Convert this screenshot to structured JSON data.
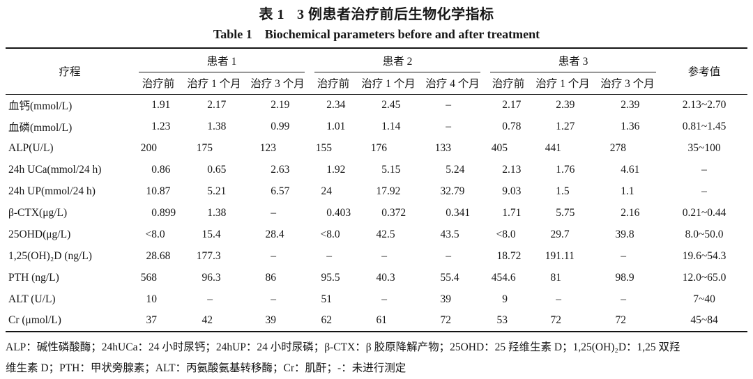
{
  "title": {
    "cn_label": "表 1",
    "cn_text": "3 例患者治疗前后生物化学指标",
    "en_label": "Table 1",
    "en_text": "Biochemical parameters before and after treatment"
  },
  "table": {
    "course_header": "疗程",
    "reference_header": "参考值",
    "patients": [
      {
        "label": "患者 1",
        "cols": [
          "治疗前",
          "治疗 1 个月",
          "治疗 3 个月"
        ]
      },
      {
        "label": "患者 2",
        "cols": [
          "治疗前",
          "治疗 1 个月",
          "治疗 4 个月"
        ]
      },
      {
        "label": "患者 3",
        "cols": [
          "治疗前",
          "治疗 1 个月",
          "治疗 3 个月"
        ]
      }
    ],
    "rows": [
      {
        "label": "血钙(mmol/L)",
        "values": [
          "1.91",
          "2.17",
          "2.19",
          "2.34",
          "2.45",
          "–",
          "2.17",
          "2.39",
          "2.39"
        ],
        "ref": "2.13~2.70"
      },
      {
        "label": "血磷(mmol/L)",
        "values": [
          "1.23",
          "1.38",
          "0.99",
          "1.01",
          "1.14",
          "–",
          "0.78",
          "1.27",
          "1.36"
        ],
        "ref": "0.81~1.45"
      },
      {
        "label": "ALP(U/L)",
        "values": [
          "200",
          "175",
          "123",
          "155",
          "176",
          "133",
          "405",
          "441",
          "278"
        ],
        "ref": "35~100"
      },
      {
        "label": "24h UCa(mmol/24 h)",
        "values": [
          "0.86",
          "0.65",
          "2.63",
          "1.92",
          "5.15",
          "5.24",
          "2.13",
          "1.76",
          "4.61"
        ],
        "ref": "–"
      },
      {
        "label": "24h UP(mmol/24 h)",
        "values": [
          "10.87",
          "5.21",
          "6.57",
          "24",
          "17.92",
          "32.79",
          "9.03",
          "1.5",
          "1.1"
        ],
        "ref": "–"
      },
      {
        "label": "β-CTX(μg/L)",
        "values": [
          "0.899",
          "1.38",
          "–",
          "0.403",
          "0.372",
          "0.341",
          "1.71",
          "5.75",
          "2.16"
        ],
        "ref": "0.21~0.44"
      },
      {
        "label": "25OHD(μg/L)",
        "values": [
          "<8.0",
          "15.4",
          "28.4",
          "<8.0",
          "42.5",
          "43.5",
          "<8.0",
          "29.7",
          "39.8"
        ],
        "ref": "8.0~50.0"
      },
      {
        "label": "1,25(OH)₂D (ng/L)",
        "values": [
          "28.68",
          "177.3",
          "–",
          "–",
          "–",
          "–",
          "18.72",
          "191.11",
          "–"
        ],
        "ref": "19.6~54.3"
      },
      {
        "label": "PTH (ng/L)",
        "values": [
          "568",
          "96.3",
          "86",
          "95.5",
          "40.3",
          "55.4",
          "454.6",
          "81",
          "98.9"
        ],
        "ref": "12.0~65.0"
      },
      {
        "label": "ALT (U/L)",
        "values": [
          "10",
          "–",
          "–",
          "51",
          "–",
          "39",
          "9",
          "–",
          "–"
        ],
        "ref": "7~40"
      },
      {
        "label": "Cr (μmol/L)",
        "values": [
          "37",
          "42",
          "39",
          "62",
          "61",
          "72",
          "53",
          "72",
          "72"
        ],
        "ref": "45~84"
      }
    ]
  },
  "footnote": {
    "line1": "ALP：碱性磷酸酶；24hUCa：24 小时尿钙；24hUP：24 小时尿磷；β-CTX：β 胶原降解产物；25OHD：25 羟维生素 D；1,25(OH)₂D：1,25 双羟",
    "line2": "维生素 D；PTH：甲状旁腺素；ALT：丙氨酸氨基转移酶；Cr：肌酐；-：未进行测定"
  },
  "colors": {
    "text": "#161616",
    "rule": "#141414",
    "background": "#ffffff"
  }
}
